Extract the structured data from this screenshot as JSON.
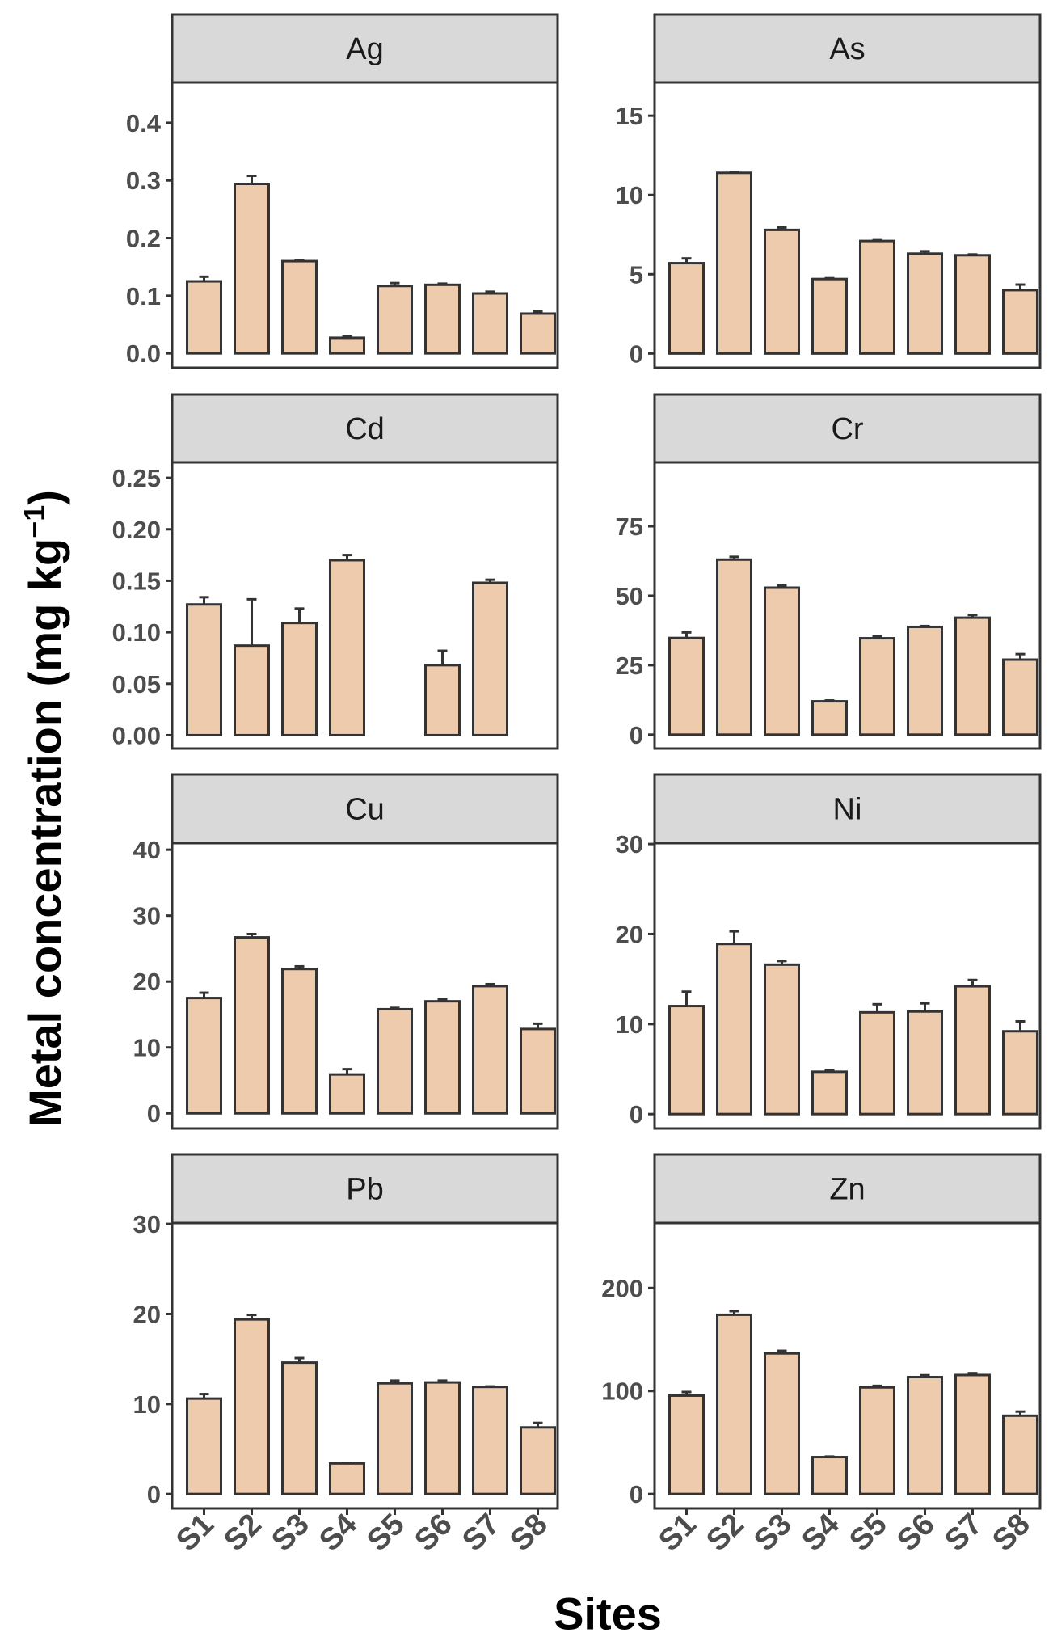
{
  "figure": {
    "ylabel_main": "Metal concentration (mg kg",
    "ylabel_exp": "−1",
    "ylabel_close": ")",
    "xlabel": "Sites"
  },
  "colors": {
    "bar_fill": "#EECBAD",
    "bar_stroke": "#333333",
    "strip_fill": "#D9D9D9",
    "panel_border": "#333333",
    "tick_text": "#4D4D4D"
  },
  "chart_data": [
    {
      "type": "bar",
      "title": "Ag",
      "categories": [
        "S1",
        "S2",
        "S3",
        "S4",
        "S5",
        "S6",
        "S7",
        "S8"
      ],
      "values": [
        0.125,
        0.294,
        0.16,
        0.027,
        0.117,
        0.119,
        0.104,
        0.069
      ],
      "errors": [
        0.008,
        0.014,
        0.002,
        0.002,
        0.005,
        0.002,
        0.003,
        0.004
      ],
      "ylim": [
        -0.025,
        0.47
      ],
      "yticks": [
        0.0,
        0.1,
        0.2,
        0.3,
        0.4
      ],
      "ytick_labels": [
        "0.0",
        "0.1",
        "0.2",
        "0.3",
        "0.4"
      ],
      "show_xticks": false
    },
    {
      "type": "bar",
      "title": "As",
      "categories": [
        "S1",
        "S2",
        "S3",
        "S4",
        "S5",
        "S6",
        "S7",
        "S8"
      ],
      "values": [
        5.7,
        11.4,
        7.8,
        4.7,
        7.1,
        6.3,
        6.2,
        4.0
      ],
      "errors": [
        0.3,
        0.05,
        0.15,
        0.05,
        0.05,
        0.15,
        0.05,
        0.35
      ],
      "ylim": [
        -0.9,
        17.1
      ],
      "yticks": [
        0,
        5,
        10,
        15
      ],
      "ytick_labels": [
        "0",
        "5",
        "10",
        "15"
      ],
      "show_xticks": false
    },
    {
      "type": "bar",
      "title": "Cd",
      "categories": [
        "S1",
        "S2",
        "S3",
        "S4",
        "S5",
        "S6",
        "S7",
        "S8"
      ],
      "values": [
        0.127,
        0.087,
        0.109,
        0.17,
        null,
        0.068,
        0.148,
        null
      ],
      "errors": [
        0.007,
        0.045,
        0.014,
        0.005,
        null,
        0.014,
        0.003,
        null
      ],
      "ylim": [
        -0.013,
        0.265
      ],
      "yticks": [
        0.0,
        0.05,
        0.1,
        0.15,
        0.2,
        0.25
      ],
      "ytick_labels": [
        "0.00",
        "0.05",
        "0.10",
        "0.15",
        "0.20",
        "0.25"
      ],
      "show_xticks": false
    },
    {
      "type": "bar",
      "title": "Cr",
      "categories": [
        "S1",
        "S2",
        "S3",
        "S4",
        "S5",
        "S6",
        "S7",
        "S8"
      ],
      "values": [
        34.8,
        63.0,
        52.9,
        12.0,
        34.7,
        38.8,
        42.1,
        27.0
      ],
      "errors": [
        2.0,
        1.0,
        0.8,
        0.3,
        0.6,
        0.3,
        1.0,
        2.0
      ],
      "ylim": [
        -5.0,
        98.0
      ],
      "yticks": [
        0,
        25,
        50,
        75
      ],
      "ytick_labels": [
        "0",
        "25",
        "50",
        "75"
      ],
      "show_xticks": false
    },
    {
      "type": "bar",
      "title": "Cu",
      "categories": [
        "S1",
        "S2",
        "S3",
        "S4",
        "S5",
        "S6",
        "S7",
        "S8"
      ],
      "values": [
        17.5,
        26.7,
        21.9,
        5.9,
        15.8,
        17.0,
        19.3,
        12.8
      ],
      "errors": [
        0.8,
        0.5,
        0.4,
        0.8,
        0.2,
        0.3,
        0.3,
        0.8
      ],
      "ylim": [
        -2.3,
        41.0
      ],
      "yticks": [
        0,
        10,
        20,
        30,
        40
      ],
      "ytick_labels": [
        "0",
        "10",
        "20",
        "30",
        "40"
      ],
      "show_xticks": false
    },
    {
      "type": "bar",
      "title": "Ni",
      "categories": [
        "S1",
        "S2",
        "S3",
        "S4",
        "S5",
        "S6",
        "S7",
        "S8"
      ],
      "values": [
        12.0,
        18.9,
        16.6,
        4.7,
        11.3,
        11.4,
        14.2,
        9.2
      ],
      "errors": [
        1.6,
        1.4,
        0.4,
        0.2,
        0.9,
        0.9,
        0.7,
        1.1
      ],
      "ylim": [
        -1.6,
        30.1
      ],
      "yticks": [
        0,
        10,
        20,
        30
      ],
      "ytick_labels": [
        "0",
        "10",
        "20",
        "30"
      ],
      "show_xticks": false
    },
    {
      "type": "bar",
      "title": "Pb",
      "categories": [
        "S1",
        "S2",
        "S3",
        "S4",
        "S5",
        "S6",
        "S7",
        "S8"
      ],
      "values": [
        10.6,
        19.4,
        14.6,
        3.4,
        12.3,
        12.4,
        11.9,
        7.4
      ],
      "errors": [
        0.5,
        0.5,
        0.5,
        0.05,
        0.3,
        0.2,
        0.05,
        0.5
      ],
      "ylim": [
        -1.6,
        30.1
      ],
      "yticks": [
        0,
        10,
        20,
        30
      ],
      "ytick_labels": [
        "0",
        "10",
        "20",
        "30"
      ],
      "show_xticks": true
    },
    {
      "type": "bar",
      "title": "Zn",
      "categories": [
        "S1",
        "S2",
        "S3",
        "S4",
        "S5",
        "S6",
        "S7",
        "S8"
      ],
      "values": [
        95.5,
        174.0,
        136.5,
        35.8,
        103.5,
        113.5,
        115.5,
        76.0
      ],
      "errors": [
        3.5,
        3.5,
        2.5,
        0.5,
        1.5,
        1.8,
        1.8,
        4.0
      ],
      "ylim": [
        -14.0,
        263.0
      ],
      "yticks": [
        0,
        100,
        200
      ],
      "ytick_labels": [
        "0",
        "100",
        "200"
      ],
      "show_xticks": true
    }
  ]
}
